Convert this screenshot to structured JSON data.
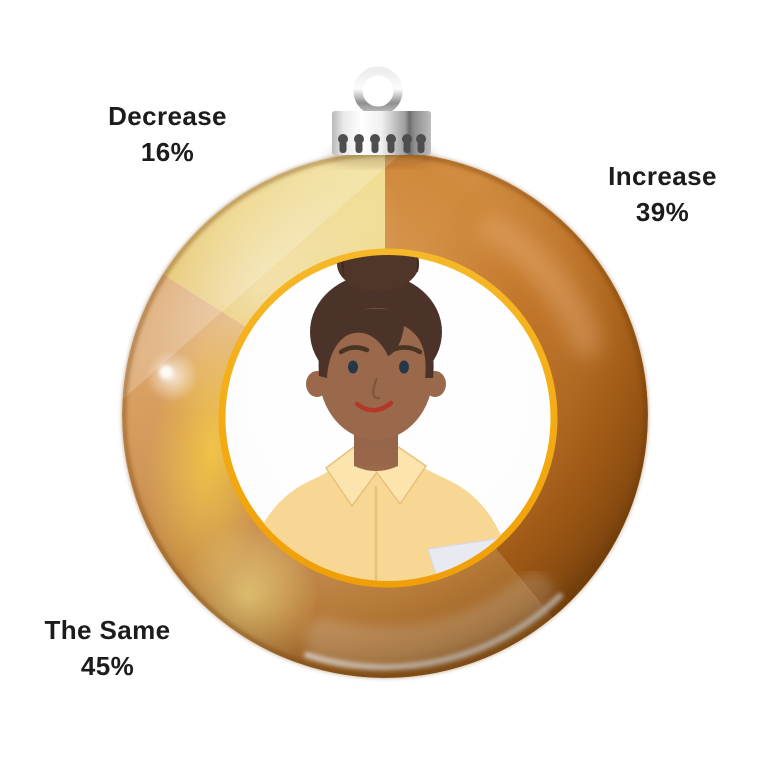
{
  "page": {
    "background": "#ffffff"
  },
  "chart_data": {
    "type": "pie",
    "variant": "donut-ornament",
    "title": "",
    "start_angle_deg": -90,
    "direction": "clockwise",
    "segments": [
      {
        "label": "Increase",
        "value": 39,
        "display": "39%",
        "color": "#b4671f"
      },
      {
        "label": "The Same",
        "value": 45,
        "display": "45%",
        "color": "#c48a4a"
      },
      {
        "label": "Decrease",
        "value": 16,
        "display": "16%",
        "color": "#e9ce77"
      }
    ],
    "inner_ring_color": "#f2a91c",
    "center_content": "woman-avatar-illustration",
    "legend_position": "labels-around-ornament"
  },
  "ornament": {
    "cap_color": "#c9c9c9",
    "hanger_ring_color": "#bdbdbd",
    "glass_highlight_color": "#ffffff"
  }
}
